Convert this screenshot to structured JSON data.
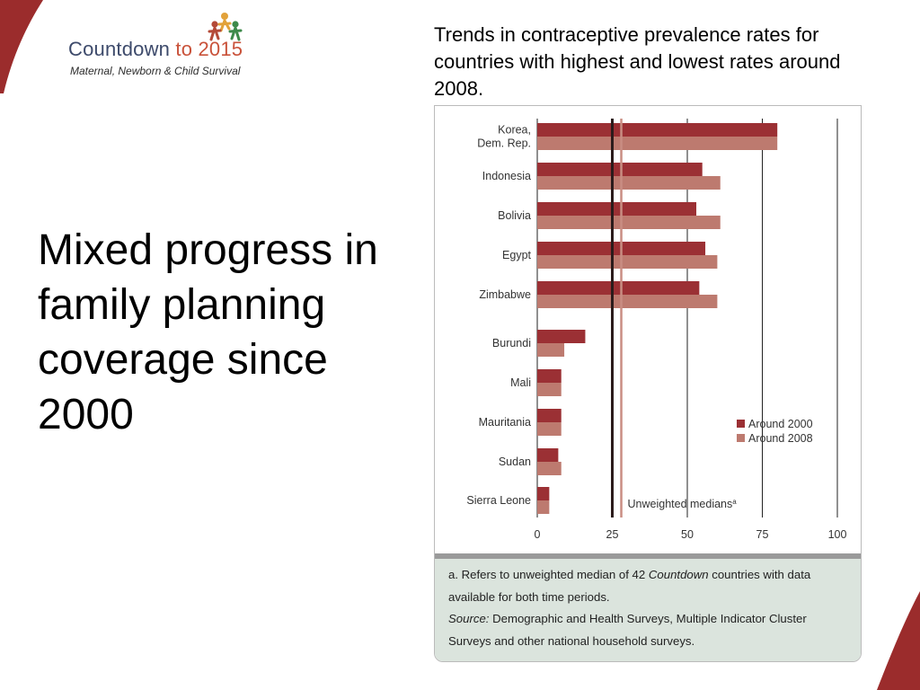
{
  "logo": {
    "brand_main": "Countdown ",
    "brand_accent": "to 2015",
    "tagline": "Maternal, Newborn & Child Survival",
    "icon": "people-figures-icon"
  },
  "slide": {
    "title": "Mixed progress in family planning coverage since 2000"
  },
  "chart_heading": "Trends in contraceptive prevalence rates for countries with highest and lowest rates around 2008.",
  "colors": {
    "around_2000": "#9b3034",
    "around_2008": "#bd7a6f",
    "corner_accent": "#9b2c2c",
    "note_background": "#dbe4dd"
  },
  "chart_data": {
    "type": "bar",
    "orientation": "horizontal",
    "categories": [
      "Korea,\nDem. Rep.",
      "Indonesia",
      "Bolivia",
      "Egypt",
      "Zimbabwe",
      "Burundi",
      "Mali",
      "Mauritania",
      "Sudan",
      "Sierra Leone"
    ],
    "series": [
      {
        "name": "Around 2000",
        "values": [
          80,
          55,
          53,
          56,
          54,
          16,
          8,
          8,
          7,
          4
        ]
      },
      {
        "name": "Around 2008",
        "values": [
          80,
          61,
          61,
          60,
          60,
          9,
          8,
          8,
          8,
          4
        ]
      }
    ],
    "xlim": [
      0,
      100
    ],
    "xticks": [
      0,
      25,
      50,
      75,
      100
    ],
    "reference_lines": [
      {
        "series": "Around 2000",
        "value": 25
      },
      {
        "series": "Around 2008",
        "value": 28
      }
    ],
    "reference_label": "Unweighted medians",
    "reference_label_superscript": "a",
    "legend_position": "right"
  },
  "notes": {
    "footnote_prefix": "a. Refers to unweighted median of 42 ",
    "footnote_italic": "Countdown",
    "footnote_suffix": " countries with data available for both time periods.",
    "source_label": "Source:",
    "source_text": " Demographic and Health Surveys, Multiple Indicator Cluster Surveys and other national household surveys."
  }
}
